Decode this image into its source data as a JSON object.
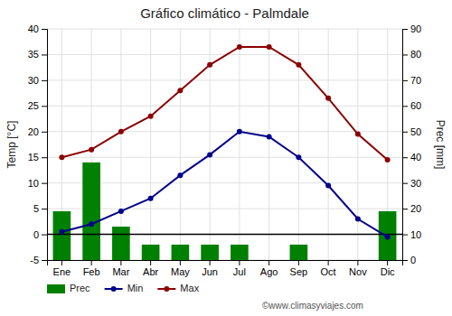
{
  "chart_data": {
    "type": "bar",
    "title": "Gráfico climático - Palmdale",
    "categories": [
      "Ene",
      "Feb",
      "Mar",
      "Abr",
      "May",
      "Jun",
      "Jul",
      "Ago",
      "Sep",
      "Oct",
      "Nov",
      "Dic"
    ],
    "series": [
      {
        "name": "Prec",
        "type": "bar",
        "axis": "y2",
        "color": "#008000",
        "values": [
          19,
          38,
          13,
          6,
          6,
          6,
          6,
          0,
          6,
          0,
          0,
          19
        ]
      },
      {
        "name": "Min",
        "type": "line",
        "color": "#00008B",
        "marker": "circle",
        "values": [
          0.5,
          2.0,
          4.5,
          7.0,
          11.5,
          15.5,
          20.0,
          19.0,
          15.0,
          9.5,
          3.0,
          -0.5
        ]
      },
      {
        "name": "Max",
        "type": "line",
        "color": "#8B0000",
        "marker": "circle",
        "values": [
          15.0,
          16.5,
          20.0,
          23.0,
          28.0,
          33.0,
          36.5,
          36.5,
          33.0,
          26.5,
          19.5,
          14.5
        ]
      }
    ],
    "ylabel": "Temp [°C]",
    "y2label": "Prec [mm]",
    "ylim": [
      -5,
      40
    ],
    "yticks": [
      -5,
      0,
      5,
      10,
      15,
      20,
      25,
      30,
      35,
      40
    ],
    "y2lim": [
      0,
      90
    ],
    "y2ticks": [
      0,
      10,
      20,
      30,
      40,
      50,
      60,
      70,
      80,
      90
    ],
    "reference_lines": [
      {
        "value": 0,
        "color": "#000000"
      }
    ],
    "annotations": [
      {
        "text": "©www.climasyviajes.com"
      }
    ],
    "grid": true,
    "legend": "bottom"
  }
}
